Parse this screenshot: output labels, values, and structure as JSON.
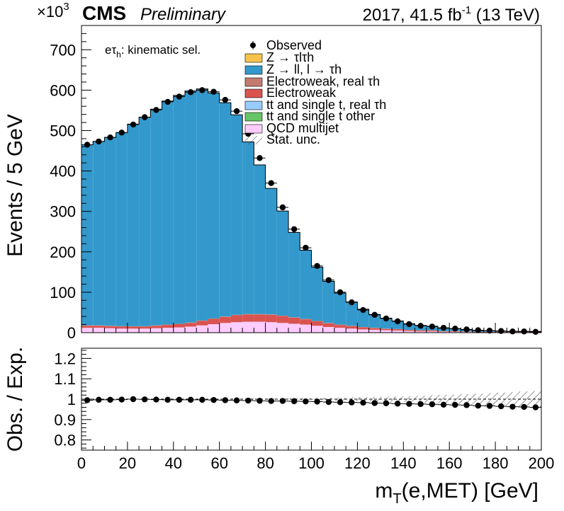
{
  "header": {
    "exponent": "×10",
    "exponent_power": "3",
    "cms": "CMS",
    "preliminary": "Preliminary",
    "lumi_prefix": "2017, 41.5 fb",
    "lumi_power": "-1",
    "lumi_suffix": " (13 TeV)"
  },
  "channel_label": "eτh: kinematic sel.",
  "legend": {
    "observed": "Observed",
    "ztautau": "Z → τlτh",
    "zll": "Z → ll, l → τh",
    "ewk_real": "Electroweak, real τh",
    "ewk": "Electroweak",
    "tt_real": "tt and single t, real τh",
    "tt_other": "tt and single t other",
    "qcd": "QCD multijet",
    "stat": "Stat. unc."
  },
  "colors": {
    "ztautau": "#f7c34a",
    "zll": "#3399cc",
    "ewk_real": "#c27b6e",
    "ewk": "#d9534f",
    "tt_real": "#99ccff",
    "tt_other": "#66c666",
    "qcd": "#ffccff"
  },
  "chart_data": [
    {
      "type": "bar",
      "subtype": "stacked-histogram",
      "xlabel": "mT(e,MET) [GeV]",
      "ylabel": "Events / 5 GeV",
      "x_bin_edges_start": 0,
      "x_bin_width": 5,
      "xlim": [
        0,
        200
      ],
      "ylim": [
        0,
        760
      ],
      "y_unit_multiplier": 1000,
      "yticks": [
        0,
        100,
        200,
        300,
        400,
        500,
        600,
        700
      ],
      "xticks": [
        0,
        20,
        40,
        60,
        80,
        100,
        120,
        140,
        160,
        180,
        200
      ],
      "series": [
        {
          "name": "QCD multijet",
          "key": "qcd",
          "values": [
            12,
            12,
            11,
            10,
            10,
            10,
            11,
            12,
            13,
            15,
            18,
            21,
            24,
            26,
            27,
            27,
            26,
            24,
            22,
            20,
            17,
            14,
            12,
            10,
            8,
            7,
            6,
            5,
            4,
            3,
            3,
            2,
            2,
            2,
            1,
            1,
            1,
            1,
            1,
            1
          ]
        },
        {
          "name": "tt and single t other",
          "key": "tt_other",
          "values": [
            0,
            0,
            0,
            0,
            0,
            0,
            0,
            0,
            0,
            0,
            0,
            0,
            0,
            0,
            0,
            0,
            0,
            0,
            0,
            0,
            0,
            0,
            0,
            0,
            0,
            0,
            0,
            0,
            0,
            0,
            0,
            0,
            0,
            0,
            0,
            0,
            0,
            0,
            0,
            0
          ]
        },
        {
          "name": "tt and single t, real τh",
          "key": "tt_real",
          "values": [
            0,
            0,
            0,
            0,
            0,
            0,
            0,
            0,
            0,
            0,
            0,
            0,
            0,
            0,
            0,
            0,
            0,
            0,
            0,
            0,
            0,
            0,
            0,
            0,
            0,
            0,
            0,
            0,
            0,
            0,
            0,
            0,
            0,
            0,
            0,
            0,
            0,
            0,
            0,
            0
          ]
        },
        {
          "name": "Electroweak",
          "key": "ewk",
          "values": [
            5,
            5,
            5,
            5,
            5,
            5,
            6,
            7,
            8,
            9,
            11,
            13,
            15,
            17,
            18,
            18,
            18,
            17,
            15,
            13,
            11,
            9,
            7,
            6,
            5,
            4,
            3,
            3,
            2,
            2,
            2,
            1,
            1,
            1,
            1,
            1,
            1,
            1,
            1,
            1
          ]
        },
        {
          "name": "Electroweak, real τh",
          "key": "ewk_real",
          "values": [
            1,
            1,
            1,
            1,
            1,
            1,
            1,
            1,
            1,
            1,
            1,
            1,
            1,
            1,
            1,
            1,
            1,
            1,
            1,
            1,
            1,
            1,
            1,
            1,
            1,
            1,
            1,
            1,
            1,
            1,
            1,
            1,
            1,
            0,
            0,
            0,
            0,
            0,
            0,
            0
          ]
        },
        {
          "name": "Z → ll, l → τh",
          "key": "zll",
          "values": [
            447,
            455,
            466,
            479,
            500,
            517,
            535,
            553,
            565,
            573,
            573,
            558,
            529,
            495,
            426,
            369,
            312,
            259,
            210,
            170,
            133,
            103,
            78,
            59,
            44,
            33,
            26,
            20,
            15,
            12,
            10,
            7,
            6,
            4,
            3,
            3,
            2,
            1,
            1,
            1
          ]
        },
        {
          "name": "Z → τlτh",
          "key": "ztautau",
          "values": [
            0,
            0,
            0,
            0,
            0,
            0,
            0,
            0,
            0,
            0,
            0,
            0,
            0,
            0,
            0,
            0,
            0,
            0,
            0,
            0,
            0,
            0,
            0,
            0,
            0,
            0,
            0,
            0,
            0,
            0,
            0,
            0,
            0,
            0,
            0,
            0,
            0,
            0,
            0,
            0
          ]
        }
      ],
      "observed": {
        "name": "Observed",
        "values": [
          465,
          473,
          483,
          495,
          515,
          533,
          551,
          571,
          584,
          595,
          600,
          596,
          576,
          548,
          492,
          432,
          370,
          310,
          256,
          210,
          165,
          130,
          100,
          75,
          56,
          44,
          35,
          28,
          21,
          17,
          15,
          12,
          10,
          8,
          6,
          5,
          4,
          3,
          3,
          2
        ]
      }
    },
    {
      "type": "scatter",
      "xlabel": "mT(e,MET) [GeV]",
      "ylabel": "Obs. / Exp.",
      "xlim": [
        0,
        200
      ],
      "ylim": [
        0.75,
        1.25
      ],
      "yticks": [
        0.8,
        0.9,
        1,
        1.1,
        1.2
      ],
      "ytick_labels": [
        "0.8",
        "0.9",
        "1",
        "1.1",
        "1.2"
      ],
      "xticks": [
        0,
        20,
        40,
        60,
        80,
        100,
        120,
        140,
        160,
        180,
        200
      ],
      "xtick_labels": [
        "0",
        "20",
        "40",
        "60",
        "80",
        "100",
        "120",
        "140",
        "160",
        "180",
        "200"
      ],
      "x": [
        2.5,
        7.5,
        12.5,
        17.5,
        22.5,
        27.5,
        32.5,
        37.5,
        42.5,
        47.5,
        52.5,
        57.5,
        62.5,
        67.5,
        72.5,
        77.5,
        82.5,
        87.5,
        92.5,
        97.5,
        102.5,
        107.5,
        112.5,
        117.5,
        122.5,
        127.5,
        132.5,
        137.5,
        142.5,
        147.5,
        152.5,
        157.5,
        162.5,
        167.5,
        172.5,
        177.5,
        182.5,
        187.5,
        192.5,
        197.5
      ],
      "ratio": [
        0.995,
        0.997,
        0.997,
        0.998,
        1.0,
        0.999,
        0.998,
        0.997,
        0.997,
        0.997,
        0.997,
        0.996,
        0.995,
        0.994,
        0.993,
        0.992,
        0.991,
        0.991,
        0.99,
        0.989,
        0.988,
        0.986,
        0.985,
        0.984,
        0.983,
        0.981,
        0.98,
        0.978,
        0.977,
        0.976,
        0.975,
        0.973,
        0.972,
        0.971,
        0.968,
        0.967,
        0.965,
        0.963,
        0.962,
        0.96
      ],
      "stat_unc": [
        0.003,
        0.003,
        0.003,
        0.003,
        0.003,
        0.003,
        0.003,
        0.003,
        0.003,
        0.003,
        0.003,
        0.003,
        0.003,
        0.003,
        0.003,
        0.003,
        0.003,
        0.003,
        0.004,
        0.005,
        0.006,
        0.007,
        0.008,
        0.009,
        0.01,
        0.011,
        0.012,
        0.013,
        0.015,
        0.017,
        0.019,
        0.021,
        0.023,
        0.025,
        0.027,
        0.03,
        0.032,
        0.035,
        0.038,
        0.04
      ],
      "reference_line": 1
    }
  ]
}
